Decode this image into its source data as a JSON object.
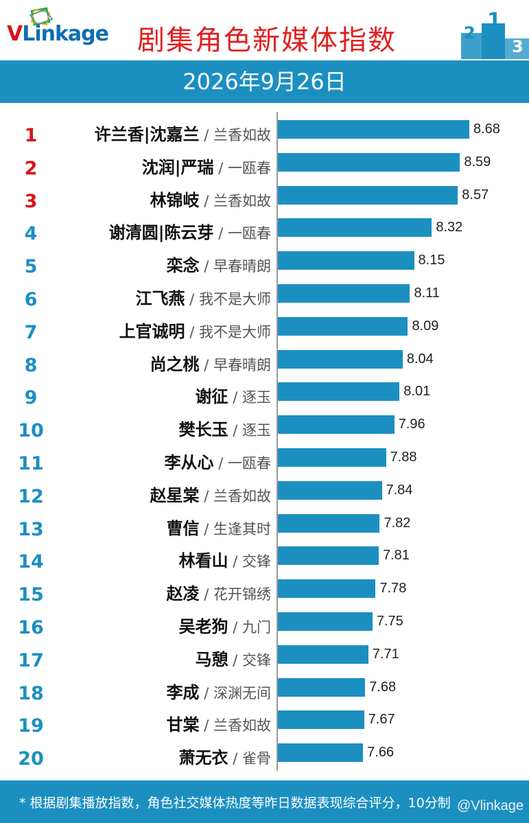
{
  "header": {
    "logo_v": "V",
    "logo_rest": "Linkage",
    "title": "剧集角色新媒体指数",
    "podium_labels": [
      "2",
      "1",
      "3"
    ]
  },
  "date": "2026年9月26日",
  "colors": {
    "accent": "#1c8fc1",
    "title_red": "#e02020",
    "rank_top3": "#d7141a",
    "rank_other": "#1c8fc1"
  },
  "chart_data": {
    "type": "bar",
    "orientation": "horizontal",
    "title": "剧集角色新媒体指数",
    "xlim": [
      0,
      10
    ],
    "categories": [
      {
        "rank": "1",
        "name": "许兰香|沈嘉兰",
        "drama": "兰香如故",
        "value": 8.68
      },
      {
        "rank": "2",
        "name": "沈润|严瑞",
        "drama": "一瓯春",
        "value": 8.59
      },
      {
        "rank": "3",
        "name": "林锦岐",
        "drama": "兰香如故",
        "value": 8.57
      },
      {
        "rank": "4",
        "name": "谢清圆|陈云芽",
        "drama": "一瓯春",
        "value": 8.32
      },
      {
        "rank": "5",
        "name": "栾念",
        "drama": "早春晴朗",
        "value": 8.15
      },
      {
        "rank": "6",
        "name": "江飞燕",
        "drama": "我不是大师",
        "value": 8.11
      },
      {
        "rank": "7",
        "name": "上官诚明",
        "drama": "我不是大师",
        "value": 8.09
      },
      {
        "rank": "8",
        "name": "尚之桃",
        "drama": "早春晴朗",
        "value": 8.04
      },
      {
        "rank": "9",
        "name": "谢征",
        "drama": "逐玉",
        "value": 8.01
      },
      {
        "rank": "10",
        "name": "樊长玉",
        "drama": "逐玉",
        "value": 7.96
      },
      {
        "rank": "11",
        "name": "李从心",
        "drama": "一瓯春",
        "value": 7.88
      },
      {
        "rank": "12",
        "name": "赵星棠",
        "drama": "兰香如故",
        "value": 7.84
      },
      {
        "rank": "13",
        "name": "曹信",
        "drama": "生逢其时",
        "value": 7.82
      },
      {
        "rank": "14",
        "name": "林看山",
        "drama": "交锋",
        "value": 7.81
      },
      {
        "rank": "15",
        "name": "赵凌",
        "drama": "花开锦绣",
        "value": 7.78
      },
      {
        "rank": "16",
        "name": "吴老狗",
        "drama": "九门",
        "value": 7.75
      },
      {
        "rank": "17",
        "name": "马憩",
        "drama": "交锋",
        "value": 7.71
      },
      {
        "rank": "18",
        "name": "李成",
        "drama": "深渊无间",
        "value": 7.68
      },
      {
        "rank": "19",
        "name": "甘棠",
        "drama": "兰香如故",
        "value": 7.67
      },
      {
        "rank": "20",
        "name": "萧无衣",
        "drama": "雀骨",
        "value": 7.66
      }
    ],
    "value_format": "2 decimals"
  },
  "footer": {
    "note": "* 根据剧集播放指数，角色社交媒体热度等昨日数据表现综合评分，10分制",
    "watermark": "@Vlinkage"
  }
}
